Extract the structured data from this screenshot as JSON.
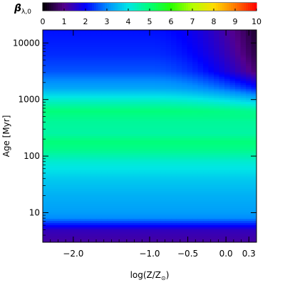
{
  "chart_data": {
    "type": "heatmap",
    "colorbar": {
      "label": "β",
      "label_subscript": "λ,0",
      "min": 0,
      "max": 10,
      "ticks": [
        "0",
        "1",
        "2",
        "3",
        "4",
        "5",
        "6",
        "7",
        "8",
        "9",
        "10"
      ],
      "colormap": "rainbow (black-purple-blue-cyan-green-yellow-red)",
      "placement": "top"
    },
    "xlabel": "log(Z/Z",
    "xlabel_symbol": "⊙",
    "xlabel_close": ")",
    "ylabel": "Age [Myr]",
    "xlim": [
      -2.4,
      0.4
    ],
    "ylim_myr": [
      3,
      17000
    ],
    "y_scale": "log",
    "xticks": [
      {
        "value": -2.0,
        "label": "−2.0"
      },
      {
        "value": -1.0,
        "label": "−1.0"
      },
      {
        "value": -0.5,
        "label": "−0.5"
      },
      {
        "value": 0.0,
        "label": "0.0"
      },
      {
        "value": 0.3,
        "label": "0.3"
      }
    ],
    "yticks": [
      {
        "value": 10,
        "label": "10"
      },
      {
        "value": 100,
        "label": "100"
      },
      {
        "value": 1000,
        "label": "1000"
      },
      {
        "value": 10000,
        "label": "10000"
      }
    ],
    "beta_vs_age_at_low_metallicity": {
      "log_age_myr": [
        0.5,
        0.68,
        0.78,
        0.9,
        1.0,
        1.3,
        1.6,
        1.9,
        2.1,
        2.25,
        2.4,
        2.6,
        2.8,
        3.0,
        3.2,
        3.5,
        3.8,
        4.23
      ],
      "beta": [
        1.2,
        1.4,
        2.1,
        3.0,
        3.2,
        3.4,
        3.7,
        4.2,
        4.8,
        5.0,
        4.6,
        4.7,
        5.0,
        4.2,
        3.3,
        2.6,
        2.3,
        2.1
      ]
    },
    "high_metallicity_old_age_trend": {
      "description_values": {
        "log_age_myr": [
          3.0,
          3.5,
          3.8,
          4.23
        ],
        "beta_at_log_Z_0.3": [
          3.2,
          2.0,
          1.5,
          1.0
        ]
      }
    }
  }
}
